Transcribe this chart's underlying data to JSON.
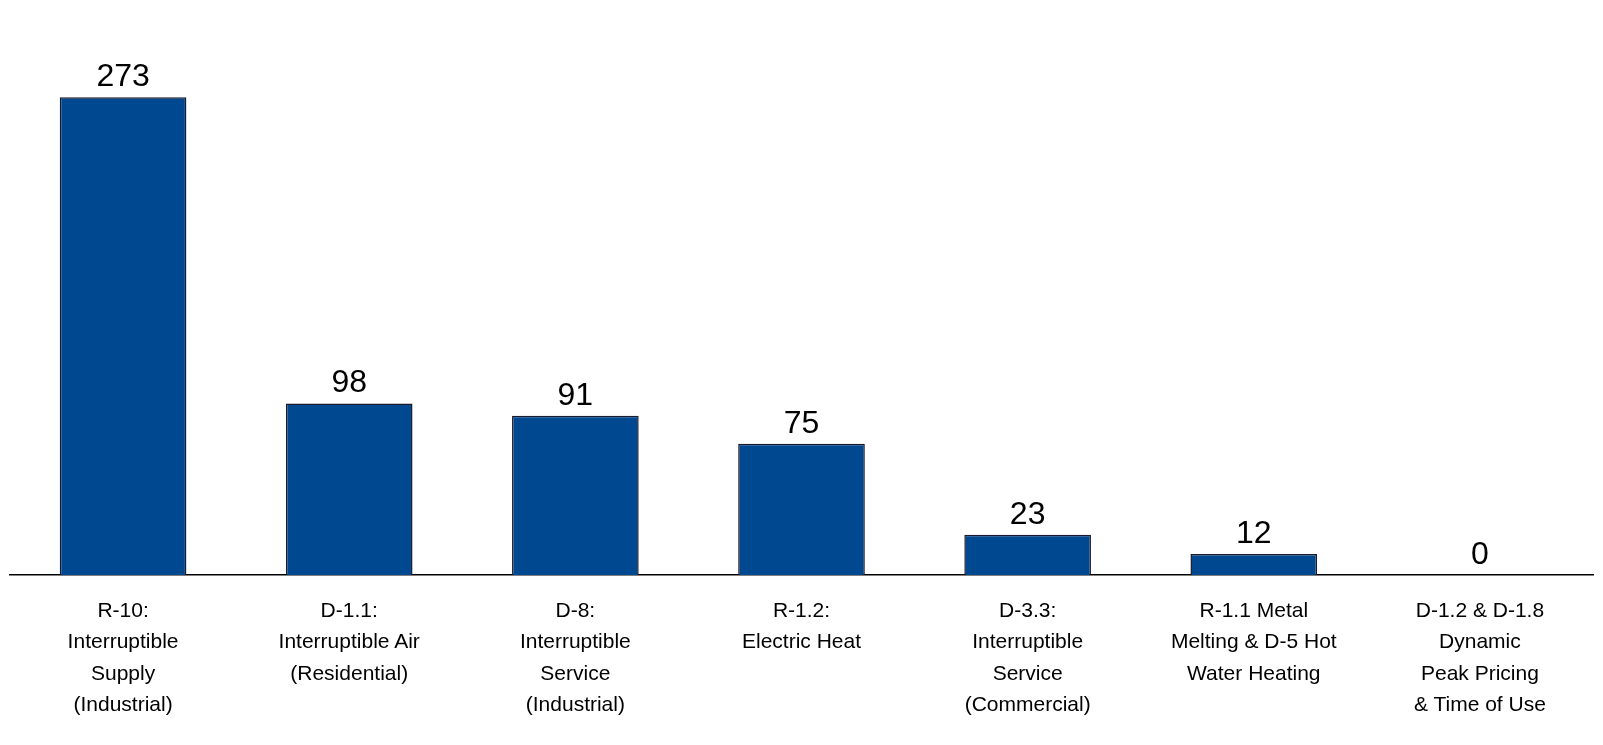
{
  "chart_data": {
    "type": "bar",
    "categories": [
      "R-10:\nInterruptible\nSupply\n(Industrial)",
      "D-1.1:\nInterruptible Air\n(Residential)",
      "D-8:\nInterruptible\nService\n(Industrial)",
      "R-1.2:\nElectric Heat",
      "D-3.3:\nInterruptible\nService\n(Commercial)",
      "R-1.1 Metal\nMelting & D-5 Hot\nWater Heating",
      "D-1.2 & D-1.8\nDynamic\nPeak Pricing\n& Time of Use"
    ],
    "values": [
      273,
      98,
      91,
      75,
      23,
      12,
      0
    ],
    "color": "#004990",
    "data_labels": true,
    "grid": false,
    "legend": false
  }
}
